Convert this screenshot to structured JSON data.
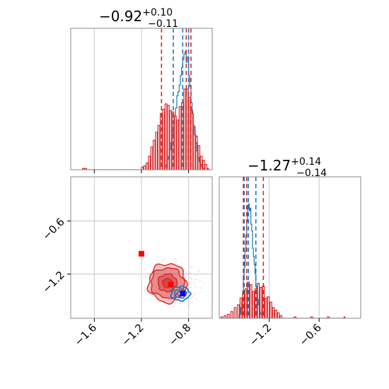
{
  "colors": {
    "red": "#d62728",
    "blue": "#1f77b4",
    "frame": "#888888",
    "grid": "#c8c8c8"
  },
  "chart_data": {
    "type": "corner",
    "grid": true,
    "panels": [
      {
        "id": "hist-x",
        "type": "histogram",
        "title": {
          "value": "−0.92",
          "plus": "+0.10",
          "minus": "−0.11"
        },
        "xlim": [
          -1.8,
          -0.6
        ],
        "x_ticks": [
          -1.6,
          -1.2,
          -0.8
        ],
        "series": [
          {
            "color": "#1f77b4",
            "quantiles": [
              -0.93,
              -0.85,
              -0.8
            ],
            "bins": [
              [
                -1.0,
                0.02
              ],
              [
                -0.99,
                0.04
              ],
              [
                -0.98,
                0.08
              ],
              [
                -0.97,
                0.1
              ],
              [
                -0.96,
                0.15
              ],
              [
                -0.95,
                0.2
              ],
              [
                -0.94,
                0.26
              ],
              [
                -0.93,
                0.32
              ],
              [
                -0.92,
                0.4
              ],
              [
                -0.91,
                0.46
              ],
              [
                -0.9,
                0.55
              ],
              [
                -0.89,
                0.58
              ],
              [
                -0.88,
                0.63
              ],
              [
                -0.87,
                0.7
              ],
              [
                -0.86,
                0.76
              ],
              [
                -0.85,
                0.82
              ],
              [
                -0.84,
                0.86
              ],
              [
                -0.83,
                0.88
              ],
              [
                -0.82,
                0.8
              ],
              [
                -0.81,
                0.84
              ],
              [
                -0.8,
                0.7
              ],
              [
                -0.79,
                0.62
              ],
              [
                -0.78,
                0.5
              ],
              [
                -0.77,
                0.42
              ],
              [
                -0.76,
                0.33
              ],
              [
                -0.75,
                0.26
              ],
              [
                -0.74,
                0.2
              ],
              [
                -0.73,
                0.14
              ],
              [
                -0.72,
                0.09
              ],
              [
                -0.71,
                0.06
              ],
              [
                -0.7,
                0.04
              ],
              [
                -0.69,
                0.02
              ],
              [
                -0.68,
                0.01
              ]
            ]
          },
          {
            "color": "#d62728",
            "quantiles": [
              -1.03,
              -0.82,
              -0.78
            ],
            "bins": [
              [
                -1.7,
                0.01
              ],
              [
                -1.68,
                0.01
              ],
              [
                -1.2,
                0.02
              ],
              [
                -1.18,
                0.03
              ],
              [
                -1.16,
                0.05
              ],
              [
                -1.14,
                0.1
              ],
              [
                -1.12,
                0.17
              ],
              [
                -1.1,
                0.22
              ],
              [
                -1.08,
                0.28
              ],
              [
                -1.06,
                0.33
              ],
              [
                -1.04,
                0.42
              ],
              [
                -1.02,
                0.45
              ],
              [
                -1.0,
                0.49
              ],
              [
                -0.98,
                0.48
              ],
              [
                -0.96,
                0.44
              ],
              [
                -0.94,
                0.43
              ],
              [
                -0.92,
                0.4
              ],
              [
                -0.9,
                0.37
              ],
              [
                -0.88,
                0.47
              ],
              [
                -0.86,
                0.5
              ],
              [
                -0.84,
                0.6
              ],
              [
                -0.82,
                0.6
              ],
              [
                -0.8,
                0.54
              ],
              [
                -0.78,
                0.44
              ],
              [
                -0.76,
                0.32
              ],
              [
                -0.74,
                0.25
              ],
              [
                -0.72,
                0.18
              ],
              [
                -0.7,
                0.1
              ],
              [
                -0.68,
                0.07
              ],
              [
                -0.66,
                0.04
              ],
              [
                -0.64,
                0.01
              ]
            ]
          }
        ]
      },
      {
        "id": "hist-y",
        "type": "histogram",
        "title": {
          "value": "−1.27",
          "plus": "+0.14",
          "minus": "−0.14"
        },
        "xlim": [
          -1.8,
          -0.1
        ],
        "x_ticks": [
          -1.2,
          -0.6
        ],
        "series": [
          {
            "color": "#1f77b4",
            "quantiles": [
              -1.5,
              -1.45,
              -1.36
            ],
            "bins": [
              [
                -1.56,
                0.03
              ],
              [
                -1.54,
                0.08
              ],
              [
                -1.53,
                0.12
              ],
              [
                -1.52,
                0.2
              ],
              [
                -1.51,
                0.32
              ],
              [
                -1.5,
                0.38
              ],
              [
                -1.49,
                0.5
              ],
              [
                -1.48,
                0.62
              ],
              [
                -1.47,
                0.72
              ],
              [
                -1.46,
                0.84
              ],
              [
                -1.45,
                0.85
              ],
              [
                -1.44,
                0.8
              ],
              [
                -1.43,
                0.82
              ],
              [
                -1.42,
                0.7
              ],
              [
                -1.41,
                0.65
              ],
              [
                -1.4,
                0.52
              ],
              [
                -1.39,
                0.46
              ],
              [
                -1.38,
                0.4
              ],
              [
                -1.37,
                0.33
              ],
              [
                -1.36,
                0.24
              ],
              [
                -1.35,
                0.2
              ],
              [
                -1.34,
                0.14
              ],
              [
                -1.33,
                0.1
              ],
              [
                -1.32,
                0.07
              ],
              [
                -1.31,
                0.04
              ],
              [
                -1.3,
                0.03
              ],
              [
                -1.29,
                0.02
              ]
            ]
          },
          {
            "color": "#d62728",
            "quantiles": [
              -1.51,
              -1.47,
              -1.27
            ],
            "bins": [
              [
                -1.78,
                0.01
              ],
              [
                -1.74,
                0.02
              ],
              [
                -1.7,
                0.03
              ],
              [
                -1.66,
                0.05
              ],
              [
                -1.62,
                0.08
              ],
              [
                -1.58,
                0.1
              ],
              [
                -1.55,
                0.15
              ],
              [
                -1.52,
                0.18
              ],
              [
                -1.49,
                0.22
              ],
              [
                -1.46,
                0.27
              ],
              [
                -1.43,
                0.25
              ],
              [
                -1.4,
                0.2
              ],
              [
                -1.37,
                0.22
              ],
              [
                -1.34,
                0.26
              ],
              [
                -1.31,
                0.23
              ],
              [
                -1.28,
                0.24
              ],
              [
                -1.25,
                0.15
              ],
              [
                -1.22,
                0.16
              ],
              [
                -1.19,
                0.12
              ],
              [
                -1.16,
                0.08
              ],
              [
                -1.13,
                0.06
              ],
              [
                -1.1,
                0.04
              ],
              [
                -1.07,
                0.02
              ],
              [
                -0.9,
                0.01
              ],
              [
                -0.7,
                0.01
              ],
              [
                -0.5,
                0.01
              ],
              [
                -0.3,
                0.01
              ]
            ]
          }
        ]
      },
      {
        "id": "joint",
        "type": "contour",
        "xlim": [
          -1.8,
          -0.6
        ],
        "ylim": [
          -1.7,
          -0.1
        ],
        "x_ticks": [
          -1.6,
          -1.2,
          -0.8
        ],
        "y_ticks": [
          -1.2,
          -0.6
        ],
        "series": [
          {
            "color": "#d62728",
            "center": [
              -0.98,
              -1.3
            ],
            "levels": [
              [
                0.16,
                0.22
              ],
              [
                0.14,
                0.17
              ],
              [
                0.08,
                0.1
              ],
              [
                0.04,
                0.05
              ]
            ],
            "markers": [
              [
                -1.2,
                -0.97
              ],
              [
                -0.95,
                -1.32
              ]
            ]
          },
          {
            "color": "#1f77b4",
            "center": [
              -0.87,
              -1.42
            ],
            "levels": [
              [
                0.08,
                0.08
              ],
              [
                0.05,
                0.05
              ],
              [
                0.025,
                0.025
              ]
            ],
            "markers": [
              [
                -0.85,
                -1.42
              ]
            ]
          }
        ]
      }
    ]
  }
}
